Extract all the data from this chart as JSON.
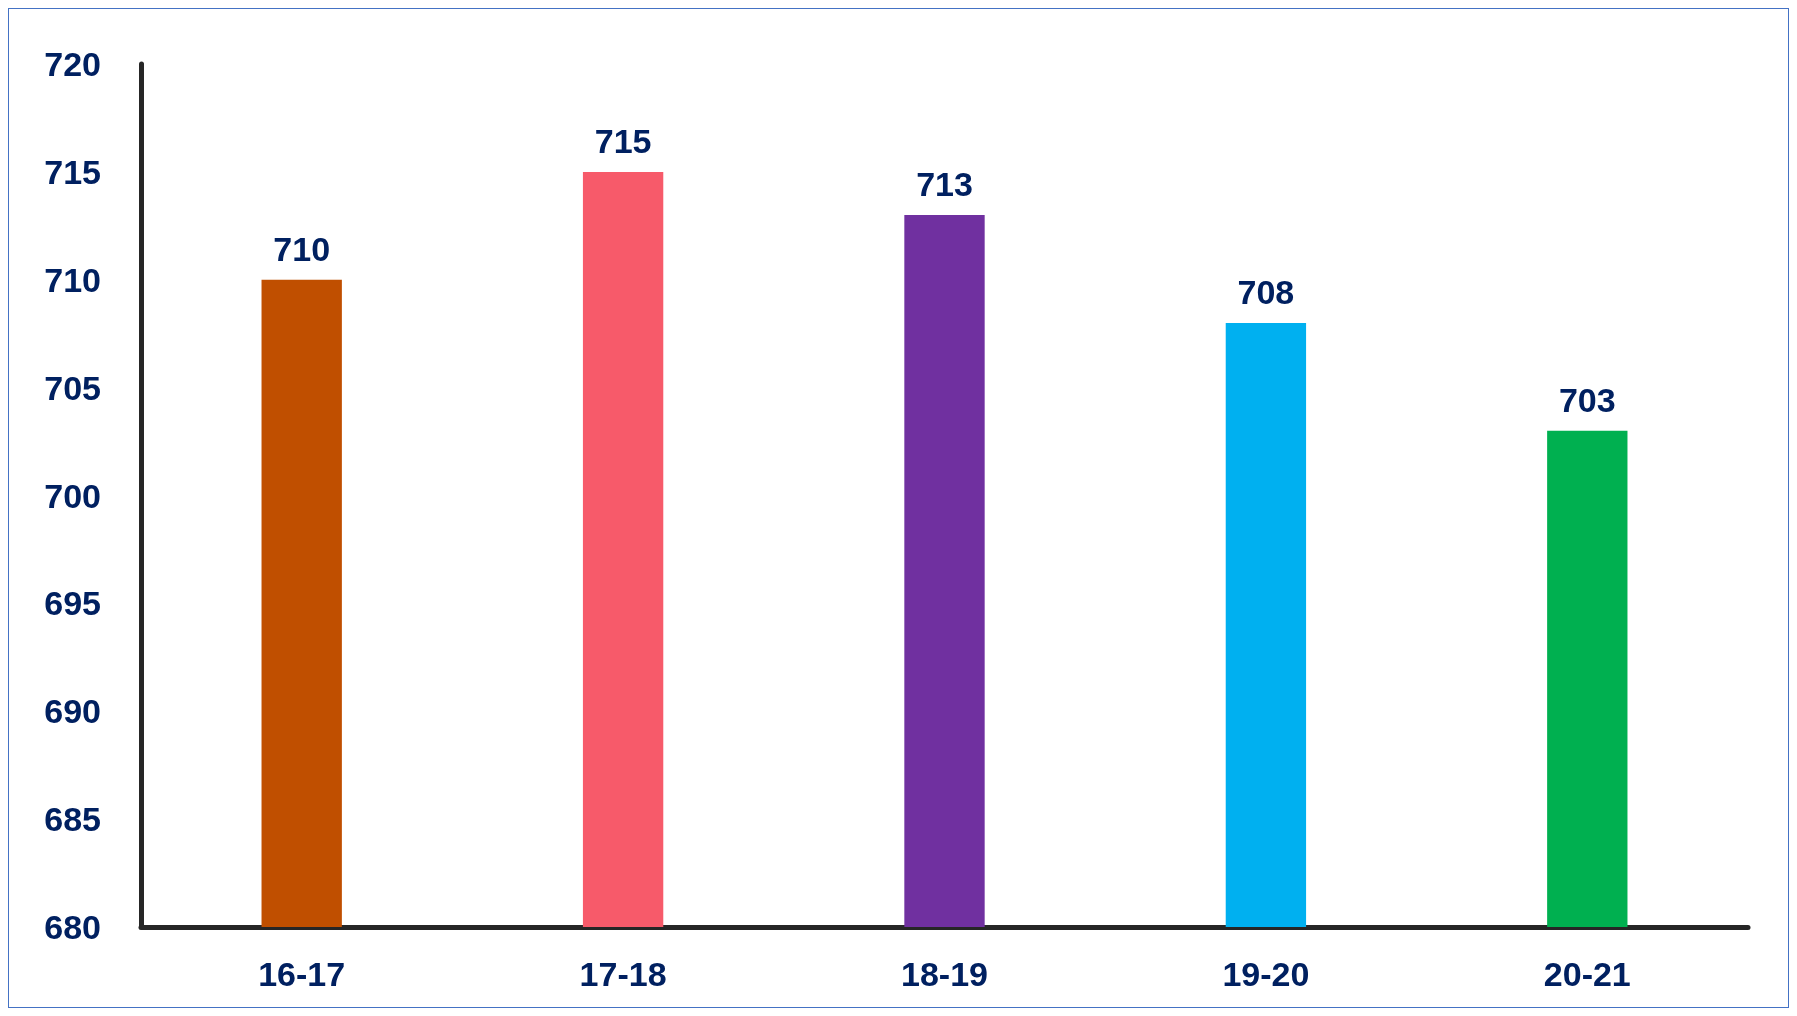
{
  "chart_data": {
    "type": "bar",
    "categories": [
      "16-17",
      "17-18",
      "18-19",
      "19-20",
      "20-21"
    ],
    "values": [
      710,
      715,
      713,
      708,
      703
    ],
    "colors": [
      "#c04f00",
      "#f75a6a",
      "#7030a0",
      "#00b0f0",
      "#00b050"
    ],
    "ylim": [
      680,
      720
    ],
    "yticks": [
      680,
      685,
      690,
      695,
      700,
      705,
      710,
      715,
      720
    ],
    "grid": false,
    "data_labels": true
  }
}
